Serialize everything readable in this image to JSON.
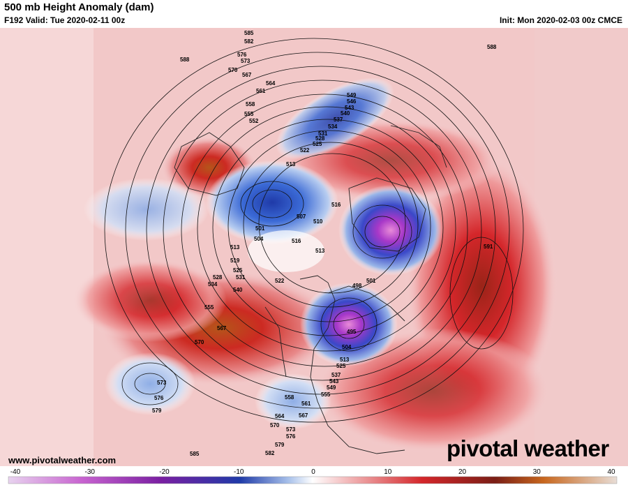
{
  "header": {
    "title": "500 mb Height Anomaly (dam)",
    "valid": "F192 Valid: Tue 2020-02-11 00z",
    "init": "Init: Mon 2020-02-03 00z CMCE"
  },
  "footer": {
    "website": "www.pivotalweather.com",
    "brand": "pivotal weather"
  },
  "colorbar": {
    "min": -40,
    "max": 40,
    "ticks": [
      "-40",
      "-30",
      "-20",
      "-10",
      "0",
      "10",
      "20",
      "30",
      "40"
    ]
  },
  "contour_labels": [
    "585",
    "582",
    "579",
    "576",
    "573",
    "570",
    "567",
    "564",
    "561",
    "558",
    "555",
    "552",
    "549",
    "546",
    "543",
    "540",
    "537",
    "534",
    "531",
    "528",
    "525",
    "522",
    "519",
    "516",
    "513",
    "510",
    "507",
    "504",
    "501",
    "498",
    "495",
    "588",
    "591"
  ],
  "anomaly_centers": [
    {
      "kind": "positive",
      "region": "western Canada",
      "label": "+"
    },
    {
      "kind": "negative",
      "region": "Siberia / Arctic",
      "label": "-"
    },
    {
      "kind": "positive",
      "region": "north Pacific",
      "label": "+"
    },
    {
      "kind": "negative",
      "region": "north Atlantic",
      "label": "-"
    },
    {
      "kind": "positive",
      "region": "eastern Atlantic",
      "label": "+"
    }
  ],
  "colors": {
    "negative_strong": "#b53ad0",
    "negative": "#2a5bd0",
    "neutral": "#ffffff",
    "positive": "#d8262a",
    "positive_strong": "#c8671e"
  }
}
